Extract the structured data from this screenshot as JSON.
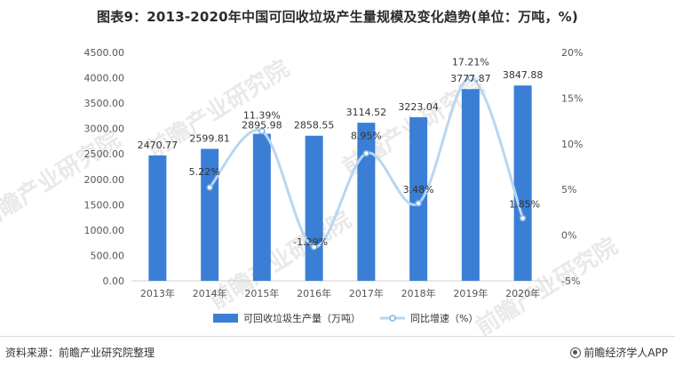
{
  "title": "图表9：2013-2020年中国可回收垃圾产生量规模及变化趋势(单位：万吨，%)",
  "footer": {
    "source": "资料来源：前瞻产业研究院整理",
    "brand": "前瞻经济学人APP"
  },
  "watermark": {
    "text": "前瞻产业研究院"
  },
  "colors": {
    "bar": "#3a7fd5",
    "line": "#b9d6ef",
    "marker": "#7fb2e0",
    "axis_text": "#555555",
    "axis_line": "#d0d0d0",
    "watermark": "#e9e9e9"
  },
  "chart_data": {
    "type": "bar",
    "categories": [
      "2013年",
      "2014年",
      "2015年",
      "2016年",
      "2017年",
      "2018年",
      "2019年",
      "2020年"
    ],
    "series": [
      {
        "name": "可回收垃圾生产量（万吨）",
        "type": "bar",
        "axis": "left",
        "values": [
          2470.77,
          2599.81,
          2895.98,
          2858.55,
          3114.52,
          3223.04,
          3777.87,
          3847.88
        ],
        "labels": [
          "2470.77",
          "2599.81",
          "2895.98",
          "2858.55",
          "3114.52",
          "3223.04",
          "3777.87",
          "3847.88"
        ]
      },
      {
        "name": "同比增速（%）",
        "type": "line",
        "smooth": true,
        "axis": "right",
        "values": [
          null,
          5.22,
          11.39,
          -1.29,
          8.95,
          3.48,
          17.21,
          1.85
        ],
        "labels": [
          "",
          "5.22%",
          "11.39%",
          "-1.29%",
          "8.95%",
          "3.48%",
          "17.21%",
          "1.85%"
        ]
      }
    ],
    "y_left": {
      "ylim": [
        0,
        4500
      ],
      "ticks": [
        0,
        500,
        1000,
        1500,
        2000,
        2500,
        3000,
        3500,
        4000,
        4500
      ],
      "tick_labels": [
        "0.00",
        "500.00",
        "1000.00",
        "1500.00",
        "2000.00",
        "2500.00",
        "3000.00",
        "3500.00",
        "4000.00",
        "4500.00"
      ]
    },
    "y_right": {
      "ylim": [
        -5,
        20
      ],
      "ticks": [
        -5,
        0,
        5,
        10,
        15,
        20
      ],
      "tick_labels": [
        "-5%",
        "0%",
        "5%",
        "10%",
        "15%",
        "20%"
      ]
    },
    "legend_position": "bottom-center",
    "grid": false
  }
}
